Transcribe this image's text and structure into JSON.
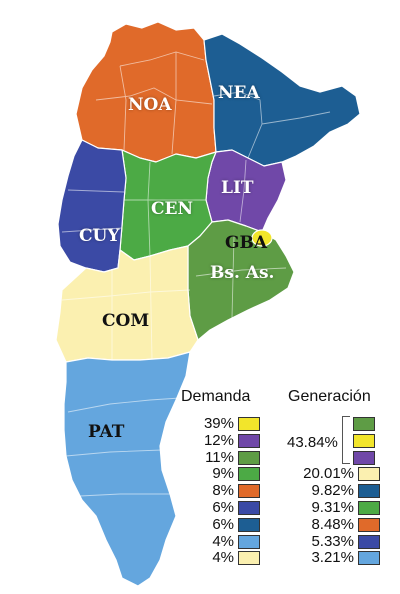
{
  "regions": [
    {
      "code": "NOA",
      "color": "#e06a2a"
    },
    {
      "code": "NEA",
      "color": "#1d5e93"
    },
    {
      "code": "LIT",
      "color": "#7048a8"
    },
    {
      "code": "CEN",
      "color": "#4caa45"
    },
    {
      "code": "CUY",
      "color": "#3b4aa5"
    },
    {
      "code": "GBA",
      "color": "#f2e52b"
    },
    {
      "code": "Bs. As.",
      "color": "#5e9c45"
    },
    {
      "code": "COM",
      "color": "#fbf0b0"
    },
    {
      "code": "PAT",
      "color": "#64a6de"
    }
  ],
  "legend": {
    "demanda_title": "Demanda",
    "generacion_title": "Generación",
    "demanda": [
      {
        "pct": "39%",
        "color": "#f2e52b"
      },
      {
        "pct": "12%",
        "color": "#7048a8"
      },
      {
        "pct": "11%",
        "color": "#5e9c45"
      },
      {
        "pct": "9%",
        "color": "#4caa45"
      },
      {
        "pct": "8%",
        "color": "#e06a2a"
      },
      {
        "pct": "6%",
        "color": "#3b4aa5"
      },
      {
        "pct": "6%",
        "color": "#1d5e93"
      },
      {
        "pct": "4%",
        "color": "#64a6de"
      },
      {
        "pct": "4%",
        "color": "#fbf0b0"
      }
    ],
    "generacion_group_pct": "43.84%",
    "generacion_group": [
      {
        "color": "#5e9c45"
      },
      {
        "color": "#f2e52b"
      },
      {
        "color": "#7048a8"
      }
    ],
    "generacion": [
      {
        "pct": "20.01%",
        "color": "#fbf0b0"
      },
      {
        "pct": "9.82%",
        "color": "#1d5e93"
      },
      {
        "pct": "9.31%",
        "color": "#4caa45"
      },
      {
        "pct": "8.48%",
        "color": "#e06a2a"
      },
      {
        "pct": "5.33%",
        "color": "#3b4aa5"
      },
      {
        "pct": "3.21%",
        "color": "#64a6de"
      }
    ]
  }
}
